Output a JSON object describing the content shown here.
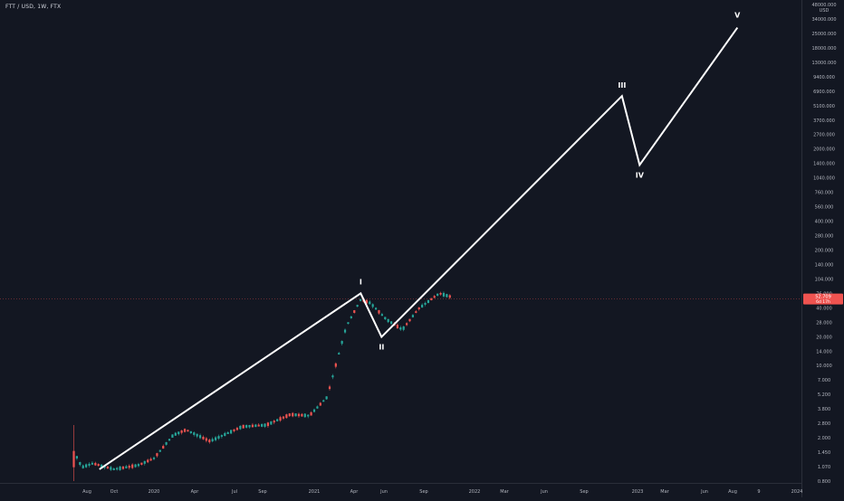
{
  "header": {
    "symbol": "FTT / USD, 1W, FTX"
  },
  "colors": {
    "background": "#131722",
    "up": "#26a69a",
    "down": "#ef5350",
    "wave_line": "#ffffff",
    "axis_text": "#b2b5be",
    "price_line": "#ef5350"
  },
  "chart_data": {
    "type": "candlestick",
    "price_scale": "log",
    "y_axis": {
      "currency": "USD",
      "ticks": [
        "48000.000",
        "34000.000",
        "25000.000",
        "18000.000",
        "13000.000",
        "9400.000",
        "6900.000",
        "5100.000",
        "3700.000",
        "2700.000",
        "2000.000",
        "1400.000",
        "1040.000",
        "760.000",
        "560.000",
        "400.000",
        "280.000",
        "200.000",
        "140.000",
        "104.000",
        "76.000",
        "40.000",
        "28.000",
        "20.000",
        "14.000",
        "10.000",
        "7.000",
        "5.200",
        "3.800",
        "2.800",
        "2.000",
        "1.450",
        "1.070",
        "0.800"
      ]
    },
    "x_axis": {
      "ticks": [
        "Aug",
        "Oct",
        "2020",
        "Apr",
        "Jul",
        "Sep",
        "2021",
        "Apr",
        "Jun",
        "Sep",
        "2022",
        "Mar",
        "Jun",
        "Sep",
        "2023",
        "Mar",
        "Jun",
        "Aug",
        "9",
        "2024"
      ]
    },
    "last_price": {
      "value": "52.709",
      "countdown": "6d 17h"
    },
    "wave_labels": [
      "I",
      "II",
      "III",
      "IV",
      "V"
    ],
    "wave_points": [
      {
        "t": 2019.66,
        "v": 1.05
      },
      {
        "t": 2021.29,
        "v": 60
      },
      {
        "t": 2021.42,
        "v": 22
      },
      {
        "t": 2022.92,
        "v": 5600
      },
      {
        "t": 2023.03,
        "v": 1150
      },
      {
        "t": 2023.64,
        "v": 27000
      }
    ],
    "anchors": [
      {
        "t": 2019.5,
        "v": 1.6,
        "c": 1.1,
        "h": 2.9,
        "l": 0.8
      },
      {
        "t": 2019.55,
        "v": 1.1,
        "c": 1.2,
        "h": 1.4,
        "l": 0.95
      },
      {
        "t": 2019.62,
        "v": 1.2,
        "c": 1.05,
        "h": 1.3,
        "l": 0.98
      },
      {
        "t": 2019.75,
        "v": 1.05,
        "c": 1.15,
        "h": 1.25,
        "l": 0.98
      },
      {
        "t": 2019.9,
        "v": 1.15,
        "c": 1.35,
        "h": 1.45,
        "l": 1.1
      },
      {
        "t": 2020.0,
        "v": 1.35,
        "c": 2.3,
        "h": 2.5,
        "l": 1.3
      },
      {
        "t": 2020.12,
        "v": 2.3,
        "c": 2.6,
        "h": 2.9,
        "l": 2.1
      },
      {
        "t": 2020.2,
        "v": 2.6,
        "c": 2.0,
        "h": 2.8,
        "l": 1.6
      },
      {
        "t": 2020.35,
        "v": 2.0,
        "c": 2.8,
        "h": 3.2,
        "l": 1.9
      },
      {
        "t": 2020.55,
        "v": 2.8,
        "c": 2.9,
        "h": 3.2,
        "l": 2.6
      },
      {
        "t": 2020.7,
        "v": 2.9,
        "c": 3.7,
        "h": 4.1,
        "l": 2.8
      },
      {
        "t": 2020.85,
        "v": 3.7,
        "c": 3.6,
        "h": 4.0,
        "l": 3.1
      },
      {
        "t": 2020.97,
        "v": 3.6,
        "c": 5.5,
        "h": 6.0,
        "l": 3.5
      },
      {
        "t": 2021.08,
        "v": 5.5,
        "c": 28,
        "h": 32,
        "l": 5.3
      },
      {
        "t": 2021.2,
        "v": 28,
        "c": 52,
        "h": 58,
        "l": 27
      },
      {
        "t": 2021.29,
        "v": 52,
        "c": 48,
        "h": 62,
        "l": 42
      },
      {
        "t": 2021.35,
        "v": 48,
        "c": 33,
        "h": 55,
        "l": 24
      },
      {
        "t": 2021.45,
        "v": 33,
        "c": 26,
        "h": 38,
        "l": 22
      },
      {
        "t": 2021.55,
        "v": 26,
        "c": 42,
        "h": 46,
        "l": 24
      },
      {
        "t": 2021.65,
        "v": 42,
        "c": 60,
        "h": 86,
        "l": 40
      },
      {
        "t": 2021.78,
        "v": 60,
        "c": 55,
        "h": 66,
        "l": 50
      },
      {
        "t": 2021.86,
        "v": 55,
        "c": 50,
        "h": 60,
        "l": 47
      }
    ]
  }
}
